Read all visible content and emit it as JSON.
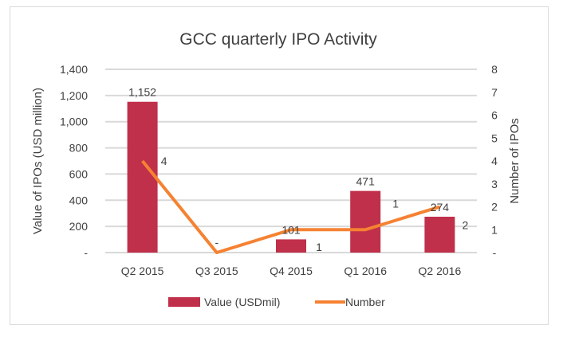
{
  "chart_data": {
    "type": "bar+line",
    "title": "GCC quarterly IPO Activity",
    "categories": [
      "Q2 2015",
      "Q3 2015",
      "Q4 2015",
      "Q1 2016",
      "Q2 2016"
    ],
    "series": [
      {
        "name": "Value (USDmil)",
        "type": "bar",
        "axis": "left",
        "color": "#C0304A",
        "values": [
          1152,
          0,
          101,
          471,
          274
        ],
        "labels": [
          "1,152",
          "",
          "101",
          "471",
          "274"
        ]
      },
      {
        "name": "Number",
        "type": "line",
        "axis": "right",
        "color": "#F58232",
        "values": [
          4,
          0,
          1,
          1,
          2
        ],
        "labels": [
          "4",
          "-",
          "1",
          "1",
          "2"
        ]
      }
    ],
    "ylabel": "Value of IPOs (USD million)",
    "y2label": "Number of IPOs",
    "ylim": [
      0,
      1400
    ],
    "y2lim": [
      0,
      8
    ],
    "yticks": [
      "-",
      "200",
      "400",
      "600",
      "800",
      "1,000",
      "1,200",
      "1,400"
    ],
    "y2ticks": [
      "-",
      "1",
      "2",
      "3",
      "4",
      "5",
      "6",
      "7",
      "8"
    ],
    "grid": true,
    "legend": "bottom"
  }
}
